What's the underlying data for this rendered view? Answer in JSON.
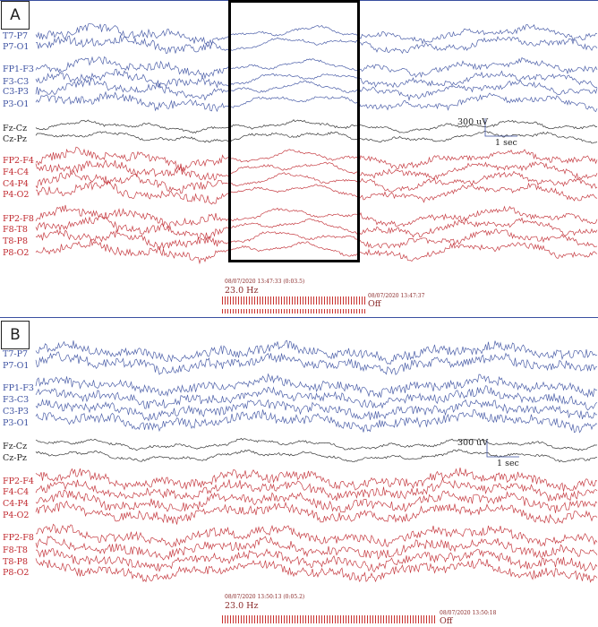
{
  "panels": [
    {
      "label": "A",
      "channels": [
        "T7-P7",
        "P7-O1",
        "FP1-F3",
        "F3-C3",
        "C3-P3",
        "P3-O1",
        "Fz-Cz",
        "Cz-Pz",
        "FP2-F4",
        "F4-C4",
        "C4-P4",
        "P4-O2",
        "FP2-F8",
        "F8-T8",
        "T8-P8",
        "P8-O2"
      ],
      "scale": {
        "amplitude": "300 uV",
        "time": "1 sec"
      },
      "stimulus": {
        "start_time": "08/07/2020 13:47:33 (0:03.5)",
        "frequency": "23.0 Hz",
        "end_time": "08/07/2020 13:47:37",
        "end_state": "Off"
      }
    },
    {
      "label": "B",
      "channels": [
        "T7-P7",
        "P7-O1",
        "FP1-F3",
        "F3-C3",
        "C3-P3",
        "P3-O1",
        "Fz-Cz",
        "Cz-Pz",
        "FP2-F4",
        "F4-C4",
        "C4-P4",
        "P4-O2",
        "FP2-F8",
        "F8-T8",
        "T8-P8",
        "P8-O2"
      ],
      "scale": {
        "amplitude": "300 uV",
        "time": "1 sec"
      },
      "stimulus": {
        "start_time": "08/07/2020 13:50:13 (0:05.2)",
        "frequency": "23.0 Hz",
        "end_time": "08/07/2020 13:50:18",
        "end_state": "Off"
      }
    }
  ],
  "colors": {
    "left_hemisphere": "#3a4fa0",
    "midline": "#222222",
    "right_hemisphere": "#c0272d",
    "photic_marker": "#c8322f"
  }
}
